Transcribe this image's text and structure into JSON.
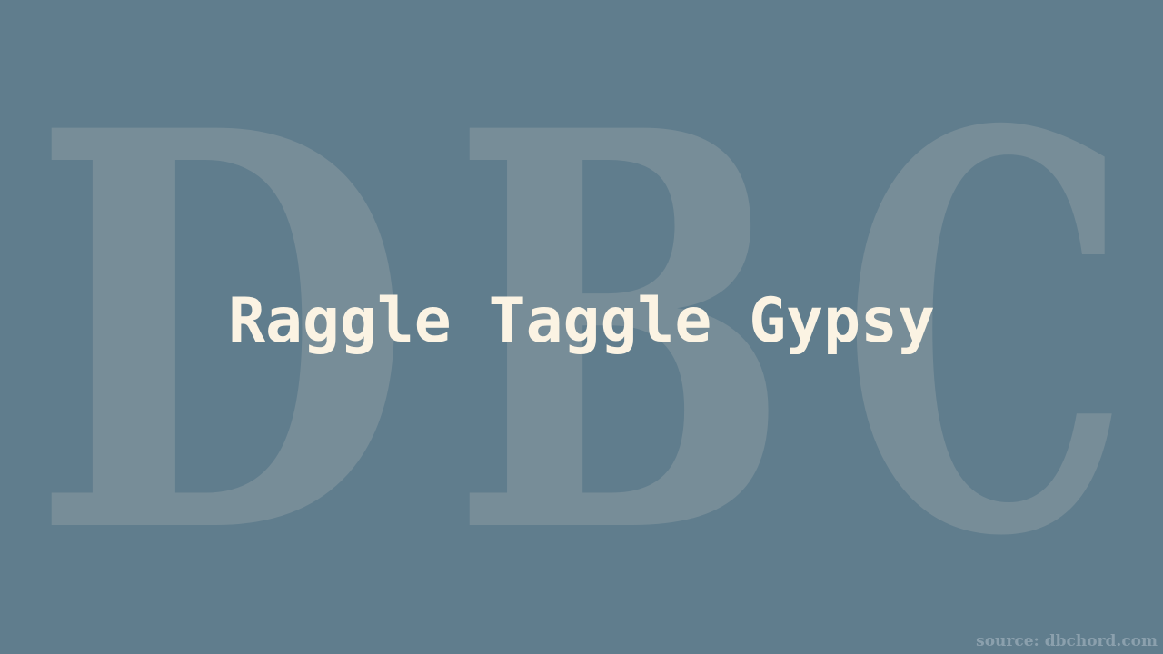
{
  "watermark": {
    "text": "DBC",
    "letters": [
      "D",
      "B",
      "C"
    ]
  },
  "title": "Raggle Taggle Gypsy",
  "source": "source: dbchord.com",
  "colors": {
    "background": "#607d8d",
    "watermark": "#778d98",
    "title": "#fbf3e3",
    "source": "#8ba0ad"
  }
}
